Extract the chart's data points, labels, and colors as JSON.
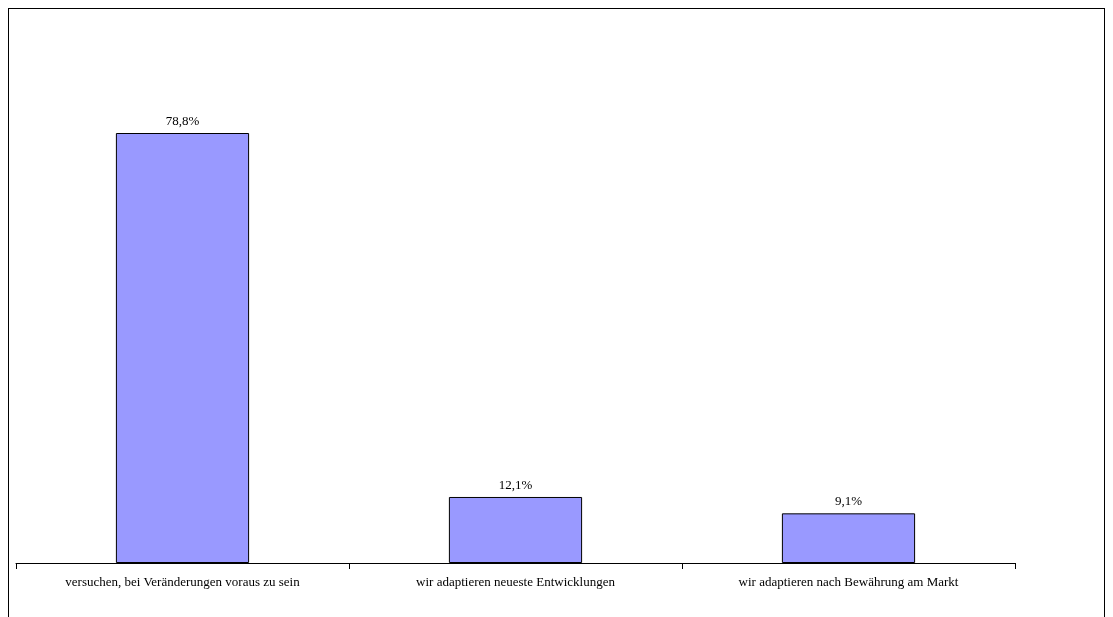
{
  "chart_data": {
    "type": "bar",
    "categories": [
      "versuchen, bei Veränderungen voraus zu sein",
      "wir adaptieren neueste Entwicklungen",
      "wir adaptieren nach Bewährung am Markt"
    ],
    "values": [
      78.8,
      12.1,
      9.1
    ],
    "value_labels": [
      "78,8%",
      "12,1%",
      "9,1%"
    ],
    "color": "#9999ff"
  }
}
